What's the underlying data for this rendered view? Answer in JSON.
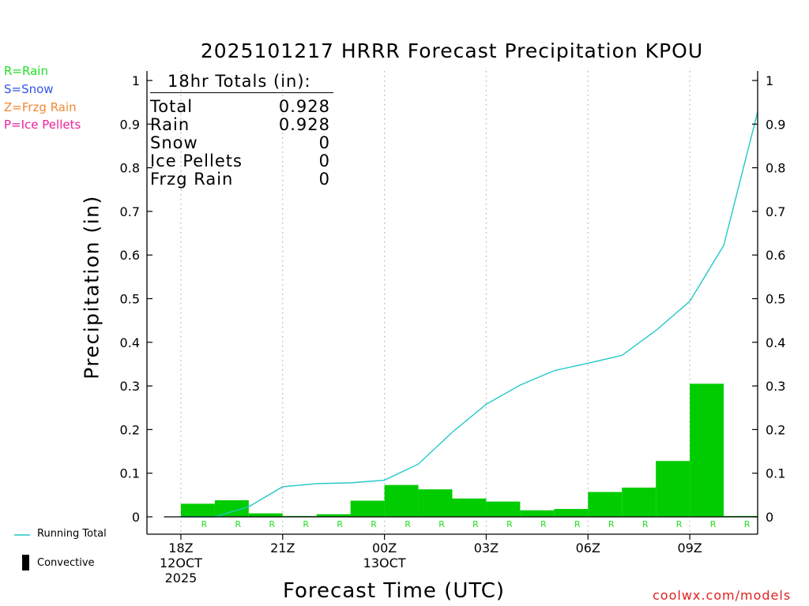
{
  "legend_keys": [
    {
      "text": "R=Rain",
      "color": "#22dd22"
    },
    {
      "text": "S=Snow",
      "color": "#3355ee"
    },
    {
      "text": "Z=Frzg Rain",
      "color": "#ee8833"
    },
    {
      "text": "P=Ice Pellets",
      "color": "#ee2299"
    }
  ],
  "totals": {
    "heading": "18hr Totals (in):",
    "rows": [
      {
        "label": "Total",
        "value": "0.928"
      },
      {
        "label": "Rain",
        "value": "0.928"
      },
      {
        "label": "Snow",
        "value": "0"
      },
      {
        "label": "Ice Pellets",
        "value": "0"
      },
      {
        "label": "Frzg Rain",
        "value": "0"
      }
    ]
  },
  "bottom_legend": {
    "running_total": "Running Total",
    "convective": "Convective"
  },
  "watermark": "coolwx.com/models",
  "colors": {
    "bar": "#00cc00",
    "line": "#22c8c8",
    "ptype_rain": "#22dd22",
    "grid": "#b0b0b0",
    "watermark": "#e02020"
  },
  "chart_data": {
    "type": "bar",
    "title": "2025101217 HRRR Forecast Precipitation KPOU",
    "xlabel": "Forecast Time (UTC)",
    "ylabel": "Precipitation (in)",
    "ylim": [
      0,
      1
    ],
    "yticks": [
      0,
      0.1,
      0.2,
      0.3,
      0.4,
      0.5,
      0.6,
      0.7,
      0.8,
      0.9,
      1
    ],
    "ytick_labels": [
      "0",
      "0.1",
      "0.2",
      "0.3",
      "0.4",
      "0.5",
      "0.6",
      "0.7",
      "0.8",
      "0.9",
      "1"
    ],
    "xlim_hours": [
      -1,
      17
    ],
    "xticks": [
      {
        "hour": 0,
        "lines": [
          "18Z",
          "12OCT",
          "2025"
        ]
      },
      {
        "hour": 3,
        "lines": [
          "21Z"
        ]
      },
      {
        "hour": 6,
        "lines": [
          "00Z",
          "13OCT"
        ]
      },
      {
        "hour": 9,
        "lines": [
          "03Z"
        ]
      },
      {
        "hour": 12,
        "lines": [
          "06Z"
        ]
      },
      {
        "hour": 15,
        "lines": [
          "09Z"
        ]
      }
    ],
    "grid": "vertical dotted at 3-hour ticks",
    "hourly_precip": {
      "hours": [
        1,
        2,
        3,
        4,
        5,
        6,
        7,
        8,
        9,
        10,
        11,
        12,
        13,
        14,
        15,
        16,
        17
      ],
      "values": [
        0.03,
        0.038,
        0.008,
        0.002,
        0.006,
        0.037,
        0.073,
        0.063,
        0.042,
        0.035,
        0.015,
        0.018,
        0.057,
        0.067,
        0.128,
        0.305,
        0.002
      ],
      "precip_type": [
        "R",
        "R",
        "R",
        "R",
        "R",
        "R",
        "R",
        "R",
        "R",
        "R",
        "R",
        "R",
        "R",
        "R",
        "R",
        "R",
        "R"
      ]
    },
    "running_total": {
      "hours": [
        0,
        1,
        2,
        3,
        4,
        5,
        6,
        7,
        8,
        9,
        10,
        11,
        12,
        13,
        14,
        15,
        16,
        17
      ],
      "values": [
        0,
        0,
        0.023,
        0.069,
        0.076,
        0.078,
        0.084,
        0.121,
        0.194,
        0.258,
        0.302,
        0.335,
        0.352,
        0.37,
        0.427,
        0.494,
        0.622,
        0.928
      ]
    }
  }
}
